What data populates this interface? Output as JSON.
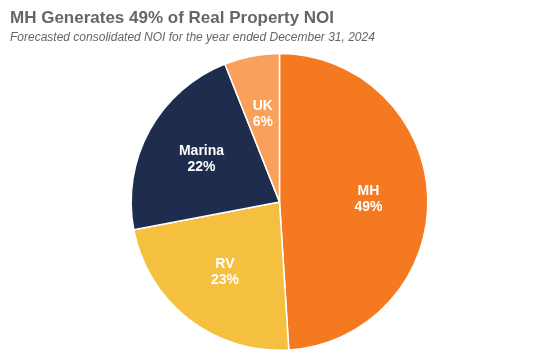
{
  "chart_data": {
    "type": "pie",
    "title": "MH Generates 49% of Real Property NOI",
    "subtitle": "Forecasted consolidated NOI for the year ended December 31, 2024",
    "categories": [
      "MH",
      "RV",
      "Marina",
      "UK"
    ],
    "values": [
      49,
      23,
      22,
      6
    ],
    "value_labels": [
      "49%",
      "23%",
      "22%",
      "6%"
    ],
    "colors": [
      "#F47920",
      "#F5C040",
      "#1E2D4E",
      "#F9A05A"
    ],
    "data_labels": true,
    "legend": false
  }
}
